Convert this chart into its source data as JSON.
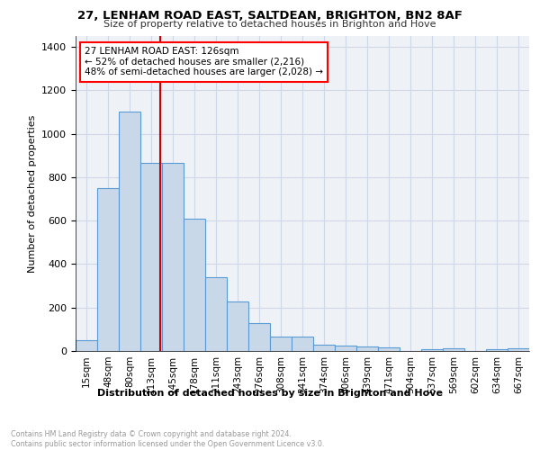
{
  "title1": "27, LENHAM ROAD EAST, SALTDEAN, BRIGHTON, BN2 8AF",
  "title2": "Size of property relative to detached houses in Brighton and Hove",
  "xlabel": "Distribution of detached houses by size in Brighton and Hove",
  "ylabel": "Number of detached properties",
  "categories": [
    "15sqm",
    "48sqm",
    "80sqm",
    "113sqm",
    "145sqm",
    "178sqm",
    "211sqm",
    "243sqm",
    "276sqm",
    "308sqm",
    "341sqm",
    "374sqm",
    "406sqm",
    "439sqm",
    "471sqm",
    "504sqm",
    "537sqm",
    "569sqm",
    "602sqm",
    "634sqm",
    "667sqm"
  ],
  "values": [
    48,
    750,
    1100,
    865,
    865,
    610,
    340,
    228,
    130,
    65,
    68,
    28,
    25,
    20,
    15,
    0,
    10,
    12,
    0,
    10,
    12
  ],
  "bar_color": "#c8d8e8",
  "bar_edge_color": "#5b9bd5",
  "grid_color": "#d0d8e8",
  "annotation_text": "27 LENHAM ROAD EAST: 126sqm\n← 52% of detached houses are smaller (2,216)\n48% of semi-detached houses are larger (2,028) →",
  "vline_color": "#cc0000",
  "ylim": [
    0,
    1450
  ],
  "yticks": [
    0,
    200,
    400,
    600,
    800,
    1000,
    1200,
    1400
  ],
  "footnote": "Contains HM Land Registry data © Crown copyright and database right 2024.\nContains public sector information licensed under the Open Government Licence v3.0.",
  "bg_color": "#eef2f7"
}
